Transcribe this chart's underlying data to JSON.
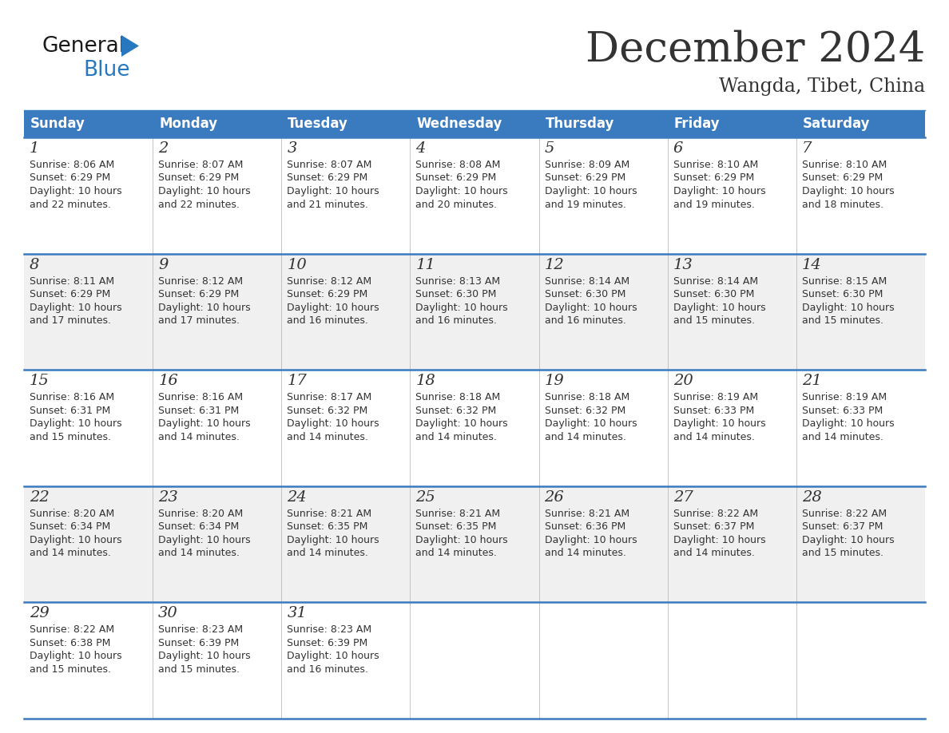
{
  "title": "December 2024",
  "subtitle": "Wangda, Tibet, China",
  "header_bg": "#3a7abf",
  "header_text_color": "#ffffff",
  "days_of_week": [
    "Sunday",
    "Monday",
    "Tuesday",
    "Wednesday",
    "Thursday",
    "Friday",
    "Saturday"
  ],
  "bg_color": "#ffffff",
  "cell_bg_even": "#ffffff",
  "cell_bg_odd": "#f0f0f0",
  "divider_color": "#3a7abf",
  "text_color": "#333333",
  "grid_line_color": "#bbbbbb",
  "calendar": [
    [
      {
        "day": 1,
        "sunrise": "8:06 AM",
        "sunset": "6:29 PM",
        "daylight": "10 hours and 22 minutes."
      },
      {
        "day": 2,
        "sunrise": "8:07 AM",
        "sunset": "6:29 PM",
        "daylight": "10 hours and 22 minutes."
      },
      {
        "day": 3,
        "sunrise": "8:07 AM",
        "sunset": "6:29 PM",
        "daylight": "10 hours and 21 minutes."
      },
      {
        "day": 4,
        "sunrise": "8:08 AM",
        "sunset": "6:29 PM",
        "daylight": "10 hours and 20 minutes."
      },
      {
        "day": 5,
        "sunrise": "8:09 AM",
        "sunset": "6:29 PM",
        "daylight": "10 hours and 19 minutes."
      },
      {
        "day": 6,
        "sunrise": "8:10 AM",
        "sunset": "6:29 PM",
        "daylight": "10 hours and 19 minutes."
      },
      {
        "day": 7,
        "sunrise": "8:10 AM",
        "sunset": "6:29 PM",
        "daylight": "10 hours and 18 minutes."
      }
    ],
    [
      {
        "day": 8,
        "sunrise": "8:11 AM",
        "sunset": "6:29 PM",
        "daylight": "10 hours and 17 minutes."
      },
      {
        "day": 9,
        "sunrise": "8:12 AM",
        "sunset": "6:29 PM",
        "daylight": "10 hours and 17 minutes."
      },
      {
        "day": 10,
        "sunrise": "8:12 AM",
        "sunset": "6:29 PM",
        "daylight": "10 hours and 16 minutes."
      },
      {
        "day": 11,
        "sunrise": "8:13 AM",
        "sunset": "6:30 PM",
        "daylight": "10 hours and 16 minutes."
      },
      {
        "day": 12,
        "sunrise": "8:14 AM",
        "sunset": "6:30 PM",
        "daylight": "10 hours and 16 minutes."
      },
      {
        "day": 13,
        "sunrise": "8:14 AM",
        "sunset": "6:30 PM",
        "daylight": "10 hours and 15 minutes."
      },
      {
        "day": 14,
        "sunrise": "8:15 AM",
        "sunset": "6:30 PM",
        "daylight": "10 hours and 15 minutes."
      }
    ],
    [
      {
        "day": 15,
        "sunrise": "8:16 AM",
        "sunset": "6:31 PM",
        "daylight": "10 hours and 15 minutes."
      },
      {
        "day": 16,
        "sunrise": "8:16 AM",
        "sunset": "6:31 PM",
        "daylight": "10 hours and 14 minutes."
      },
      {
        "day": 17,
        "sunrise": "8:17 AM",
        "sunset": "6:32 PM",
        "daylight": "10 hours and 14 minutes."
      },
      {
        "day": 18,
        "sunrise": "8:18 AM",
        "sunset": "6:32 PM",
        "daylight": "10 hours and 14 minutes."
      },
      {
        "day": 19,
        "sunrise": "8:18 AM",
        "sunset": "6:32 PM",
        "daylight": "10 hours and 14 minutes."
      },
      {
        "day": 20,
        "sunrise": "8:19 AM",
        "sunset": "6:33 PM",
        "daylight": "10 hours and 14 minutes."
      },
      {
        "day": 21,
        "sunrise": "8:19 AM",
        "sunset": "6:33 PM",
        "daylight": "10 hours and 14 minutes."
      }
    ],
    [
      {
        "day": 22,
        "sunrise": "8:20 AM",
        "sunset": "6:34 PM",
        "daylight": "10 hours and 14 minutes."
      },
      {
        "day": 23,
        "sunrise": "8:20 AM",
        "sunset": "6:34 PM",
        "daylight": "10 hours and 14 minutes."
      },
      {
        "day": 24,
        "sunrise": "8:21 AM",
        "sunset": "6:35 PM",
        "daylight": "10 hours and 14 minutes."
      },
      {
        "day": 25,
        "sunrise": "8:21 AM",
        "sunset": "6:35 PM",
        "daylight": "10 hours and 14 minutes."
      },
      {
        "day": 26,
        "sunrise": "8:21 AM",
        "sunset": "6:36 PM",
        "daylight": "10 hours and 14 minutes."
      },
      {
        "day": 27,
        "sunrise": "8:22 AM",
        "sunset": "6:37 PM",
        "daylight": "10 hours and 14 minutes."
      },
      {
        "day": 28,
        "sunrise": "8:22 AM",
        "sunset": "6:37 PM",
        "daylight": "10 hours and 15 minutes."
      }
    ],
    [
      {
        "day": 29,
        "sunrise": "8:22 AM",
        "sunset": "6:38 PM",
        "daylight": "10 hours and 15 minutes."
      },
      {
        "day": 30,
        "sunrise": "8:23 AM",
        "sunset": "6:39 PM",
        "daylight": "10 hours and 15 minutes."
      },
      {
        "day": 31,
        "sunrise": "8:23 AM",
        "sunset": "6:39 PM",
        "daylight": "10 hours and 16 minutes."
      },
      null,
      null,
      null,
      null
    ]
  ],
  "logo_general_color": "#1a1a1a",
  "logo_blue_color": "#2878c0",
  "title_fontsize": 38,
  "subtitle_fontsize": 17,
  "header_fontsize": 12,
  "day_num_fontsize": 13,
  "cell_text_fontsize": 9.0
}
